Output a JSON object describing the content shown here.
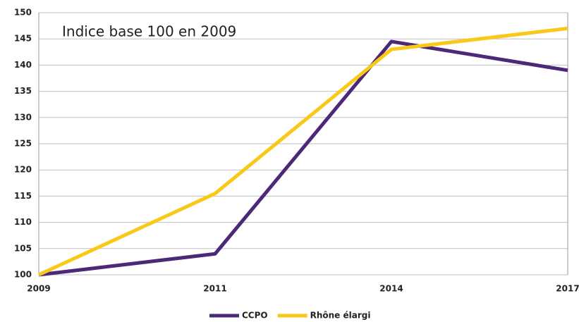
{
  "chart_data": {
    "type": "line",
    "title": "Indice base 100 en 2009",
    "categories": [
      "2009",
      "2011",
      "2014",
      "2017"
    ],
    "series": [
      {
        "name": "CCPO",
        "color": "#4b2878",
        "values": [
          100,
          104,
          144.5,
          139
        ]
      },
      {
        "name": "Rhône élargi",
        "color": "#f8c918",
        "values": [
          100,
          115.5,
          143,
          147
        ]
      }
    ],
    "ylim": [
      100,
      150
    ],
    "yticks": [
      100,
      105,
      110,
      115,
      120,
      125,
      130,
      135,
      140,
      145,
      150
    ],
    "grid": true,
    "legend": "bottom"
  }
}
